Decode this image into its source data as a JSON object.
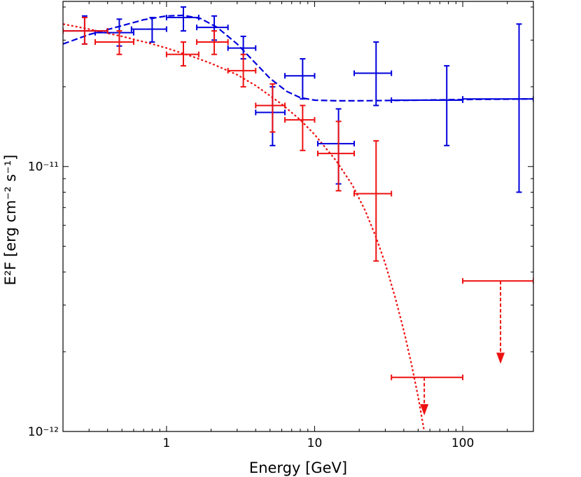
{
  "chart_data": {
    "type": "scatter",
    "title": "",
    "xlabel": "Energy [GeV]",
    "ylabel": "E²F [erg cm⁻² s⁻¹]",
    "xscale": "log",
    "yscale": "log",
    "xlim": [
      0.2,
      300
    ],
    "ylim": [
      1e-12,
      4.2e-11
    ],
    "x_ticks": [
      {
        "value": 1,
        "label": "1"
      },
      {
        "value": 10,
        "label": "10"
      },
      {
        "value": 100,
        "label": "100"
      }
    ],
    "y_ticks": [
      {
        "value": 1e-12,
        "label": "10⁻¹²"
      },
      {
        "value": 1e-11,
        "label": "10⁻¹¹"
      }
    ],
    "grid": false,
    "colors": {
      "blue": "#0000dd",
      "red": "#ee1111"
    },
    "series": [
      {
        "name": "blue-data",
        "color": "#0000dd",
        "points": [
          {
            "x": 0.28,
            "xlo": 0.2,
            "xhi": 0.4,
            "y": 3.25e-11,
            "ylo": 2.9e-11,
            "yhi": 3.7e-11
          },
          {
            "x": 0.48,
            "xlo": 0.33,
            "xhi": 0.6,
            "y": 3.2e-11,
            "ylo": 2.85e-11,
            "yhi": 3.6e-11
          },
          {
            "x": 0.8,
            "xlo": 0.58,
            "xhi": 1.0,
            "y": 3.3e-11,
            "ylo": 2.95e-11,
            "yhi": 3.65e-11
          },
          {
            "x": 1.3,
            "xlo": 1.0,
            "xhi": 1.65,
            "y": 3.65e-11,
            "ylo": 3.25e-11,
            "yhi": 4e-11
          },
          {
            "x": 2.1,
            "xlo": 1.6,
            "xhi": 2.6,
            "y": 3.35e-11,
            "ylo": 3e-11,
            "yhi": 3.7e-11
          },
          {
            "x": 3.3,
            "xlo": 2.6,
            "xhi": 4.0,
            "y": 2.8e-11,
            "ylo": 2.55e-11,
            "yhi": 3.1e-11
          },
          {
            "x": 5.2,
            "xlo": 4.0,
            "xhi": 6.3,
            "y": 1.6e-11,
            "ylo": 1.2e-11,
            "yhi": 2e-11
          },
          {
            "x": 8.3,
            "xlo": 6.3,
            "xhi": 10.0,
            "y": 2.2e-11,
            "ylo": 1.8e-11,
            "yhi": 2.55e-11
          },
          {
            "x": 14.5,
            "xlo": 10.5,
            "xhi": 18.5,
            "y": 1.22e-11,
            "ylo": 8.6e-12,
            "yhi": 1.65e-11
          },
          {
            "x": 26,
            "xlo": 18.5,
            "xhi": 33,
            "y": 2.25e-11,
            "ylo": 1.7e-11,
            "yhi": 2.95e-11
          },
          {
            "x": 78,
            "xlo": 33,
            "xhi": 100,
            "y": 1.78e-11,
            "ylo": 1.2e-11,
            "yhi": 2.4e-11
          },
          {
            "x": 240,
            "xlo": 100,
            "xhi": 300,
            "y": 1.8e-11,
            "ylo": 8e-12,
            "yhi": 3.45e-11
          }
        ],
        "model_curve": {
          "style": "dashed",
          "points": [
            [
              0.2,
              2.9e-11
            ],
            [
              0.3,
              3.15e-11
            ],
            [
              0.5,
              3.4e-11
            ],
            [
              0.7,
              3.58e-11
            ],
            [
              1.0,
              3.7e-11
            ],
            [
              1.3,
              3.72e-11
            ],
            [
              1.7,
              3.62e-11
            ],
            [
              2.2,
              3.35e-11
            ],
            [
              3.0,
              2.9e-11
            ],
            [
              4.0,
              2.45e-11
            ],
            [
              5.0,
              2.15e-11
            ],
            [
              6.5,
              1.92e-11
            ],
            [
              8.0,
              1.82e-11
            ],
            [
              10.0,
              1.78e-11
            ],
            [
              14.0,
              1.77e-11
            ],
            [
              20.0,
              1.77e-11
            ],
            [
              50.0,
              1.78e-11
            ],
            [
              100.0,
              1.79e-11
            ],
            [
              300.0,
              1.8e-11
            ]
          ]
        }
      },
      {
        "name": "red-data",
        "color": "#ee1111",
        "points": [
          {
            "x": 0.28,
            "xlo": 0.2,
            "xhi": 0.4,
            "y": 3.25e-11,
            "ylo": 2.9e-11,
            "yhi": 3.65e-11
          },
          {
            "x": 0.48,
            "xlo": 0.33,
            "xhi": 0.6,
            "y": 2.95e-11,
            "ylo": 2.65e-11,
            "yhi": 3.25e-11
          },
          {
            "x": 1.3,
            "xlo": 1.0,
            "xhi": 1.65,
            "y": 2.65e-11,
            "ylo": 2.4e-11,
            "yhi": 2.95e-11
          },
          {
            "x": 2.1,
            "xlo": 1.6,
            "xhi": 2.6,
            "y": 2.95e-11,
            "ylo": 2.65e-11,
            "yhi": 3.25e-11
          },
          {
            "x": 3.3,
            "xlo": 2.6,
            "xhi": 4.0,
            "y": 2.3e-11,
            "ylo": 2e-11,
            "yhi": 2.65e-11
          },
          {
            "x": 5.2,
            "xlo": 4.0,
            "xhi": 6.3,
            "y": 1.7e-11,
            "ylo": 1.35e-11,
            "yhi": 2.05e-11
          },
          {
            "x": 8.3,
            "xlo": 6.3,
            "xhi": 10.0,
            "y": 1.5e-11,
            "ylo": 1.15e-11,
            "yhi": 1.7e-11
          },
          {
            "x": 14.5,
            "xlo": 10.5,
            "xhi": 18.5,
            "y": 1.12e-11,
            "ylo": 8.1e-12,
            "yhi": 1.48e-11
          },
          {
            "x": 26,
            "xlo": 18.5,
            "xhi": 33,
            "y": 7.9e-12,
            "ylo": 4.4e-12,
            "yhi": 1.25e-11
          }
        ],
        "upper_limits": [
          {
            "x": 55,
            "xlo": 33,
            "xhi": 100,
            "y": 1.6e-12,
            "arrow_to": 1.15e-12
          },
          {
            "x": 180,
            "xlo": 100,
            "xhi": 300,
            "y": 3.7e-12,
            "arrow_to": 1.8e-12
          }
        ],
        "model_curve": {
          "style": "dotted",
          "points": [
            [
              0.2,
              3.45e-11
            ],
            [
              0.3,
              3.3e-11
            ],
            [
              0.5,
              3.1e-11
            ],
            [
              0.8,
              2.9e-11
            ],
            [
              1.0,
              2.8e-11
            ],
            [
              1.5,
              2.6e-11
            ],
            [
              2.0,
              2.45e-11
            ],
            [
              3.0,
              2.22e-11
            ],
            [
              4.0,
              2.02e-11
            ],
            [
              6.0,
              1.72e-11
            ],
            [
              8.0,
              1.5e-11
            ],
            [
              10.0,
              1.32e-11
            ],
            [
              14.0,
              1.05e-11
            ],
            [
              18.0,
              8.5e-12
            ],
            [
              22.0,
              6.8e-12
            ],
            [
              26.0,
              5.4e-12
            ],
            [
              30.0,
              4.3e-12
            ],
            [
              35.0,
              3.2e-12
            ],
            [
              40.0,
              2.4e-12
            ],
            [
              45.0,
              1.8e-12
            ],
            [
              50.0,
              1.35e-12
            ],
            [
              55.0,
              1e-12
            ]
          ]
        }
      }
    ]
  }
}
